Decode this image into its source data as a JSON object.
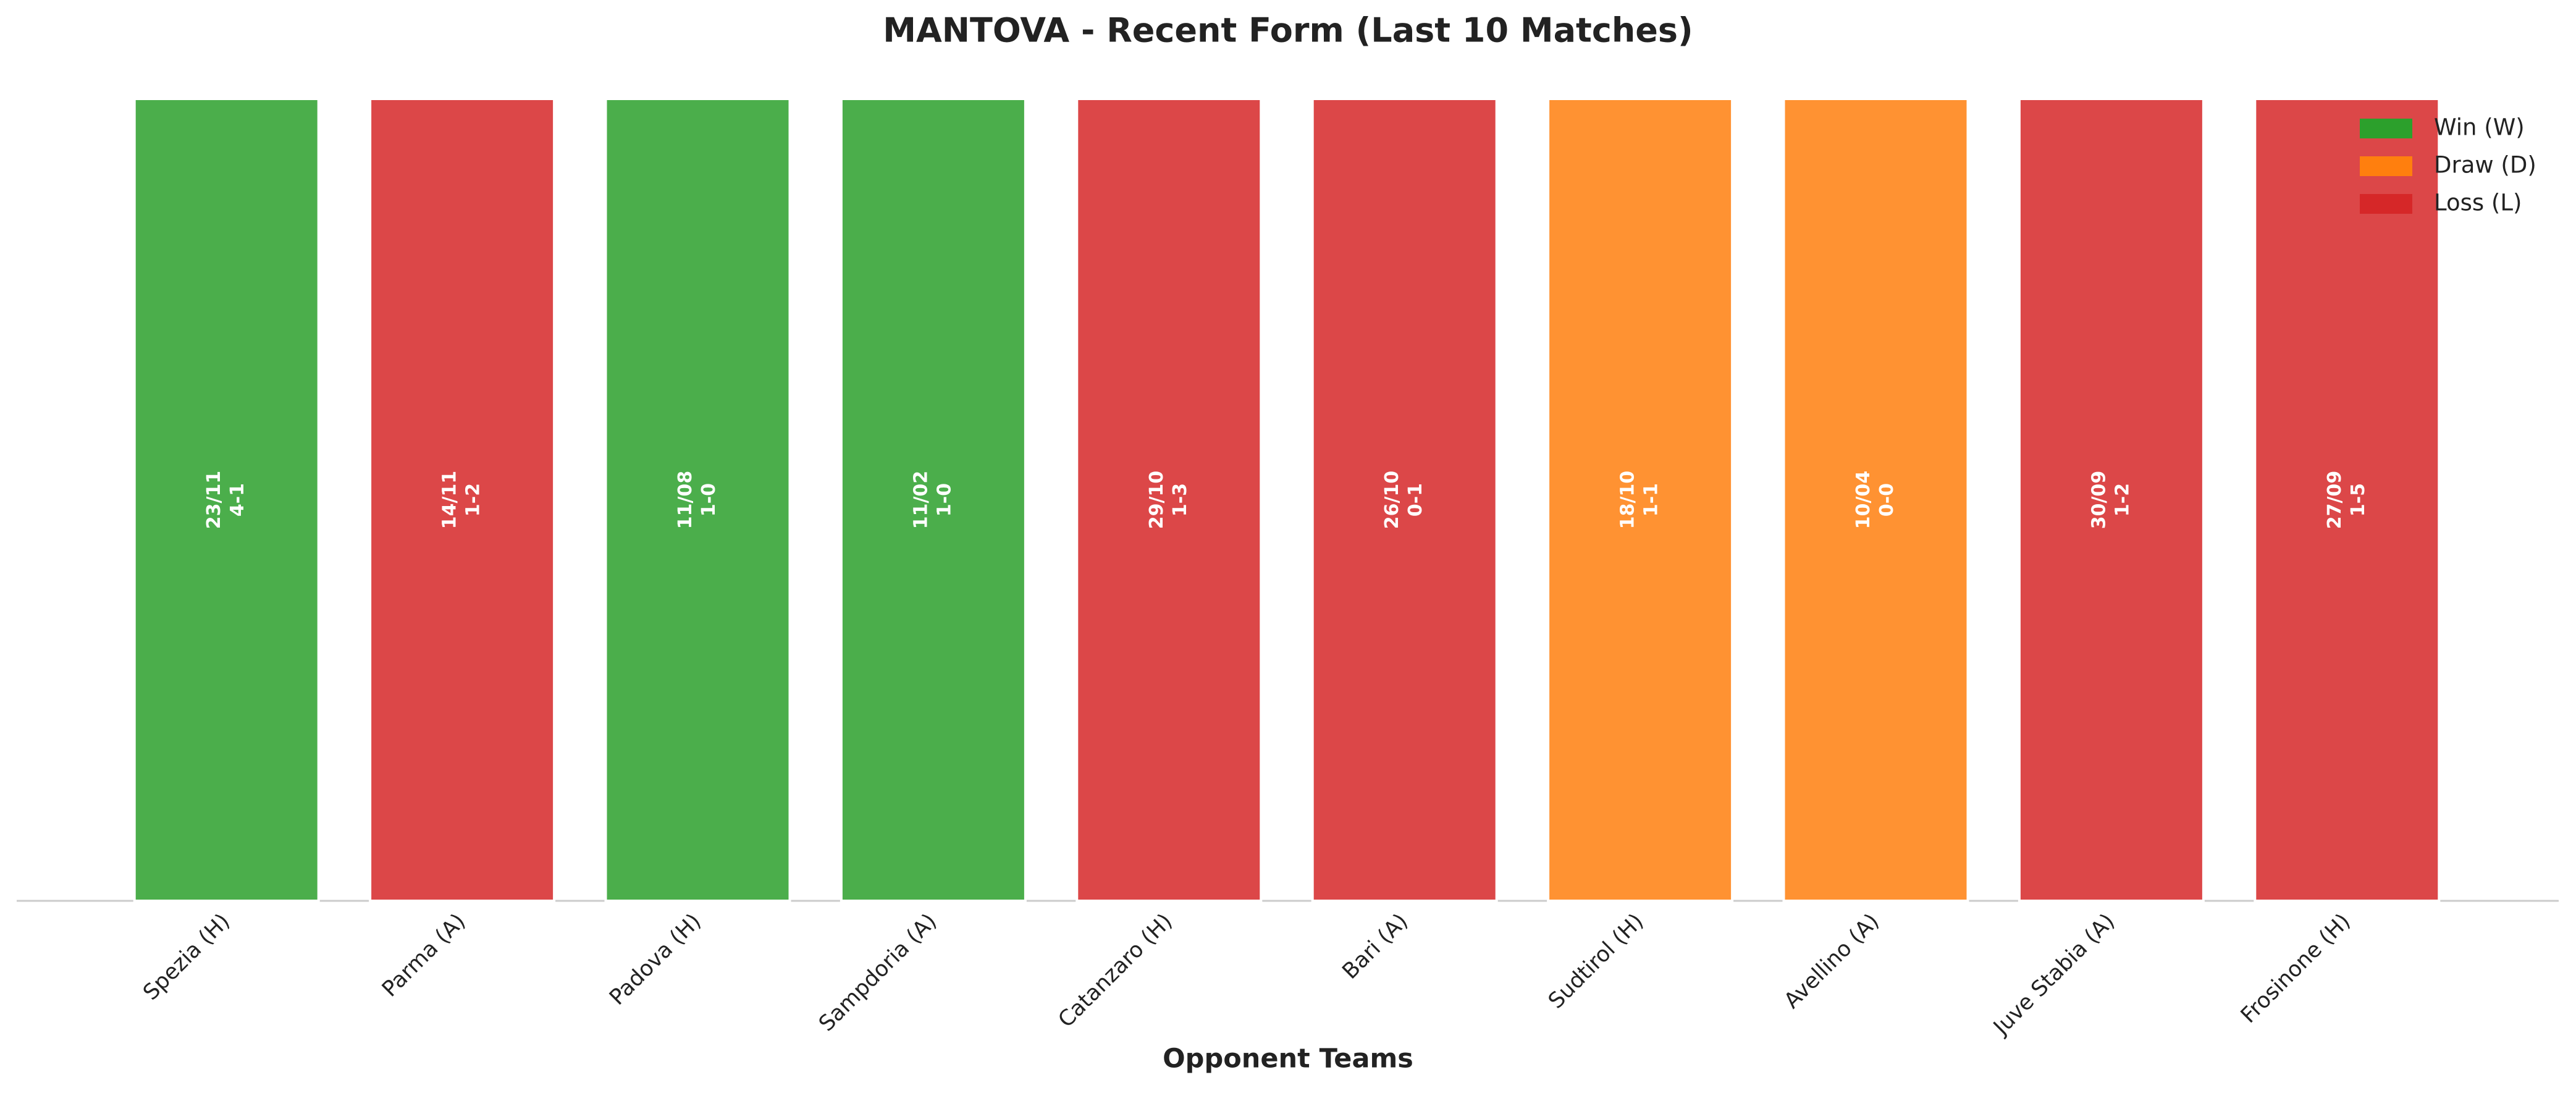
{
  "chart_data": {
    "type": "bar",
    "title": "MANTOVA - Recent Form (Last 10 Matches)",
    "x_label": "Opponent Teams",
    "categories": [
      "Spezia (H)",
      "Parma (A)",
      "Padova (H)",
      "Sampdoria (A)",
      "Catanzaro (H)",
      "Bari (A)",
      "Sudtirol (H)",
      "Avellino (A)",
      "Juve Stabia (A)",
      "Frosinone (H)"
    ],
    "values": [
      1,
      1,
      1,
      1,
      1,
      1,
      1,
      1,
      1,
      1
    ],
    "bar_labels": [
      [
        "23/11",
        "4-1"
      ],
      [
        "14/11",
        "1-2"
      ],
      [
        "11/08",
        "1-0"
      ],
      [
        "11/02",
        "1-0"
      ],
      [
        "29/10",
        "1-3"
      ],
      [
        "26/10",
        "0-1"
      ],
      [
        "18/10",
        "1-1"
      ],
      [
        "10/04",
        "0-0"
      ],
      [
        "30/09",
        "1-2"
      ],
      [
        "27/09",
        "1-5"
      ]
    ],
    "bar_colors": [
      "#2ca02c",
      "#d62728",
      "#2ca02c",
      "#2ca02c",
      "#d62728",
      "#d62728",
      "#ff7f0e",
      "#ff7f0e",
      "#d62728",
      "#d62728"
    ],
    "ylim": [
      0,
      1
    ],
    "legend": [
      {
        "name": "Win (W)",
        "color": "#2ca02c"
      },
      {
        "name": "Draw (D)",
        "color": "#ff7f0e"
      },
      {
        "name": "Loss (L)",
        "color": "#d62728"
      }
    ],
    "legend_position": "upper right"
  }
}
